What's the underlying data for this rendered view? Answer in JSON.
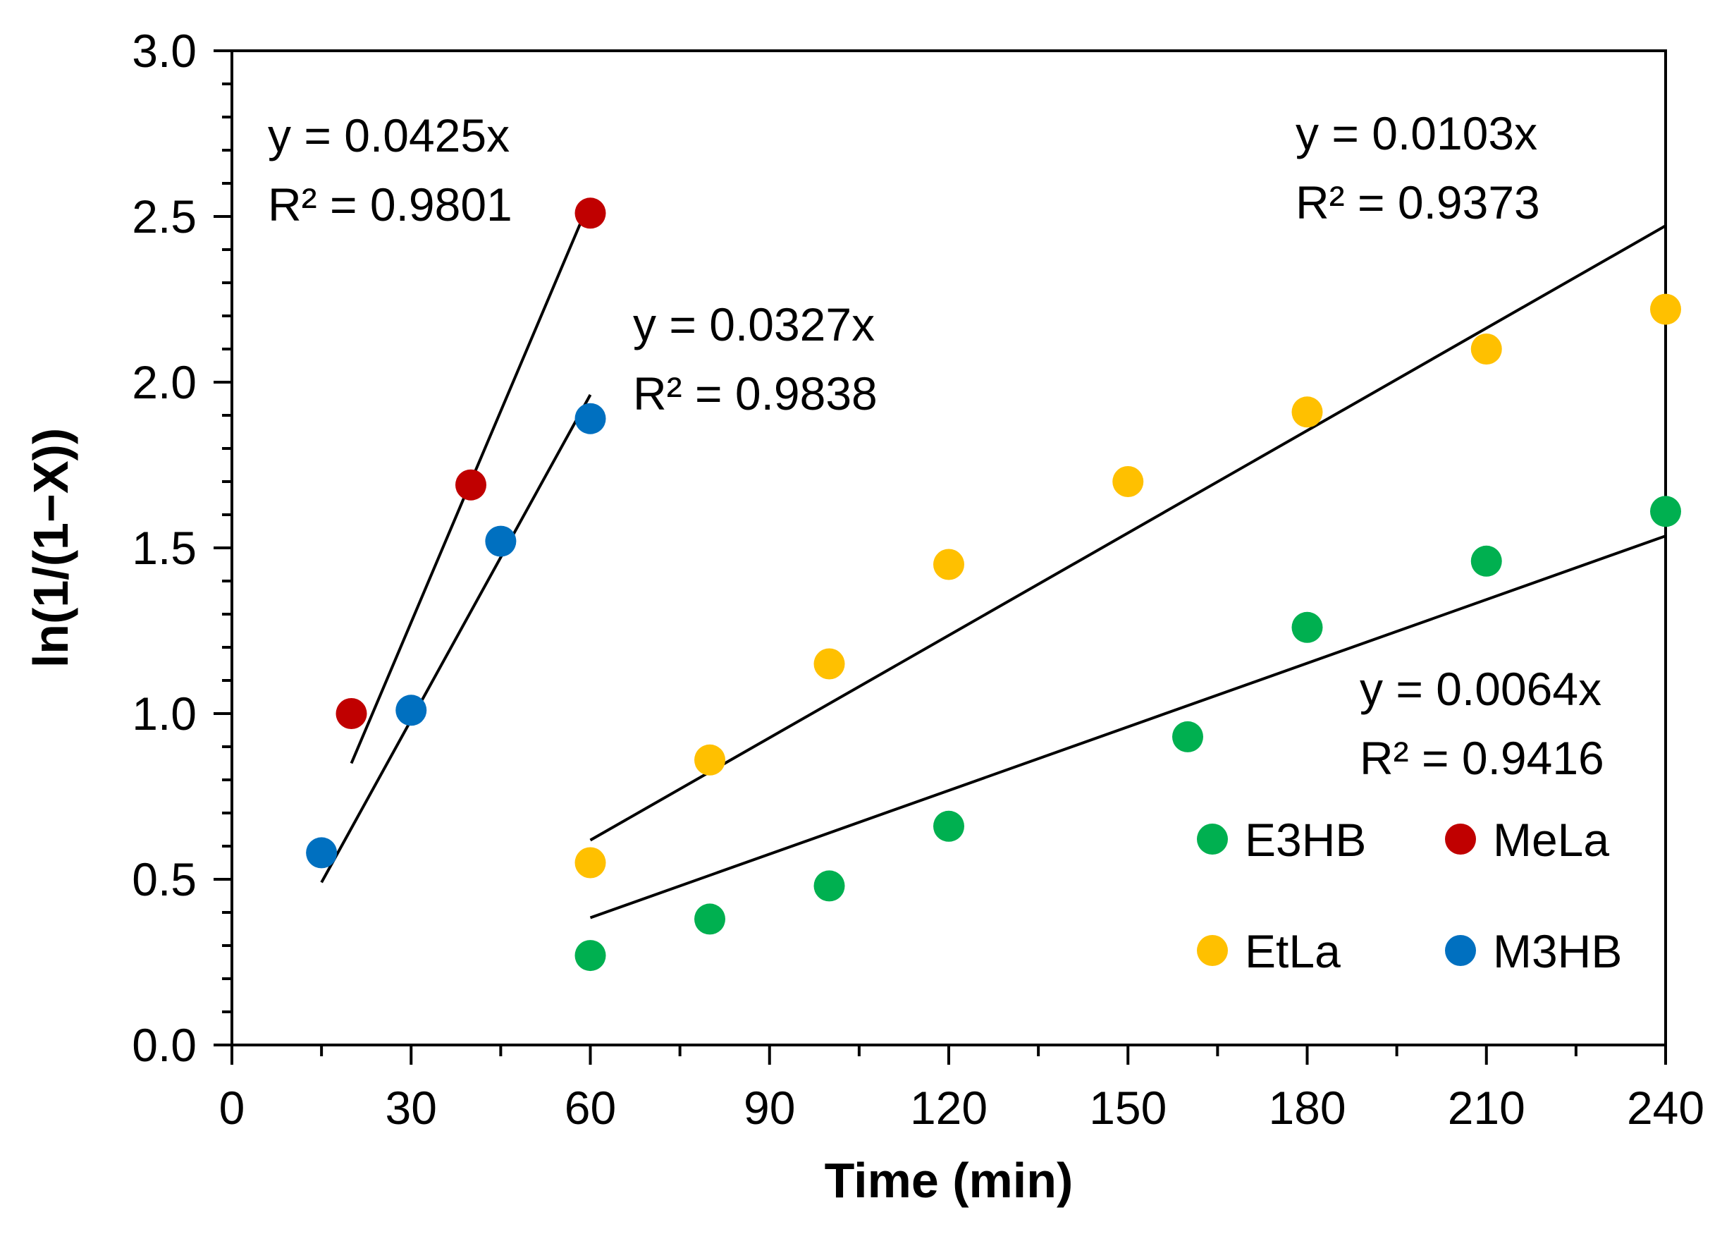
{
  "chart_data": {
    "type": "scatter",
    "xlabel": "Time (min)",
    "ylabel": "ln(1/(1−X))",
    "xlim": [
      0,
      240
    ],
    "ylim": [
      0,
      3.0
    ],
    "x_ticks": [
      "0",
      "30",
      "60",
      "90",
      "120",
      "150",
      "180",
      "210",
      "240"
    ],
    "y_ticks": [
      "0.0",
      "0.5",
      "1.0",
      "1.5",
      "2.0",
      "2.5",
      "3.0"
    ],
    "grid": false,
    "legend_position": "bottom-right",
    "series": [
      {
        "name": "E3HB",
        "color": "#00b050",
        "x": [
          60,
          80,
          100,
          120,
          160,
          180,
          210,
          240
        ],
        "y": [
          0.27,
          0.38,
          0.48,
          0.66,
          0.93,
          1.26,
          1.46,
          1.61
        ],
        "trendline": {
          "slope": 0.0064,
          "x_range": [
            60,
            240
          ],
          "equation": "y = 0.0064x",
          "r2": "R² = 0.9416"
        }
      },
      {
        "name": "MeLa",
        "color": "#c00000",
        "x": [
          20,
          40,
          60
        ],
        "y": [
          1.0,
          1.69,
          2.51
        ],
        "trendline": {
          "slope": 0.0425,
          "x_range": [
            20,
            60
          ],
          "equation": "y = 0.0425x",
          "r2": "R² = 0.9801"
        }
      },
      {
        "name": "EtLa",
        "color": "#ffc000",
        "x": [
          60,
          80,
          100,
          120,
          150,
          180,
          210,
          240
        ],
        "y": [
          0.55,
          0.86,
          1.15,
          1.45,
          1.7,
          1.91,
          2.1,
          2.22
        ],
        "trendline": {
          "slope": 0.0103,
          "x_range": [
            60,
            240
          ],
          "equation": "y = 0.0103x",
          "r2": "R² = 0.9373"
        }
      },
      {
        "name": "M3HB",
        "color": "#0070c0",
        "x": [
          15,
          30,
          45,
          60
        ],
        "y": [
          0.58,
          1.01,
          1.52,
          1.89
        ],
        "trendline": {
          "slope": 0.0327,
          "x_range": [
            15,
            60
          ],
          "equation": "y = 0.0327x",
          "r2": "R² = 0.9838"
        }
      }
    ],
    "legend_order": [
      "E3HB",
      "MeLa",
      "EtLa",
      "M3HB"
    ]
  }
}
